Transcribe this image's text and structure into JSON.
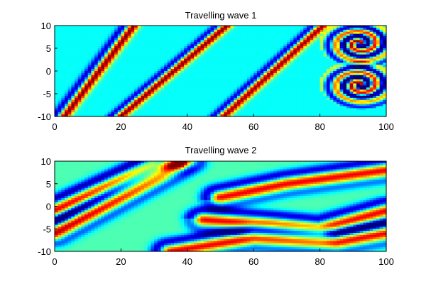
{
  "chart_data": [
    {
      "type": "heatmap",
      "title": "Travelling wave 1",
      "xlabel": "",
      "ylabel": "",
      "xlim": [
        0,
        100
      ],
      "ylim": [
        -10,
        10
      ],
      "x_ticks": [
        0,
        20,
        40,
        60,
        80,
        100
      ],
      "x_tick_labels": [
        "0",
        "20",
        "40",
        "60",
        "80",
        "100"
      ],
      "y_ticks": [
        10,
        5,
        0,
        -5,
        -10
      ],
      "y_tick_labels": [
        "10",
        "5",
        "0",
        "-5",
        "-10"
      ],
      "colormap": "jet",
      "background_value": 0.38,
      "diagonal_bands": [
        {
          "x_at_bottom": 3,
          "x_at_top": 24,
          "width": 1.2,
          "amplitude": 0.62
        },
        {
          "x_at_bottom": 20,
          "x_at_top": 52,
          "width": 1.3,
          "amplitude": 0.62
        },
        {
          "x_at_bottom": 51,
          "x_at_top": 81,
          "width": 1.3,
          "amplitude": 0.6
        }
      ],
      "spirals": [
        {
          "cx": 92,
          "cy": 6,
          "radius": 4,
          "amplitude": 0.6
        },
        {
          "cx": 92,
          "cy": -3,
          "radius": 4,
          "amplitude": 0.6
        }
      ]
    },
    {
      "type": "heatmap",
      "title": "Travelling wave 2",
      "xlabel": "",
      "ylabel": "",
      "xlim": [
        0,
        100
      ],
      "ylim": [
        -10,
        10
      ],
      "x_ticks": [
        0,
        20,
        40,
        60,
        80,
        100
      ],
      "x_tick_labels": [
        "0",
        "20",
        "40",
        "60",
        "80",
        "100"
      ],
      "y_ticks": [
        10,
        5,
        0,
        -5,
        -10
      ],
      "y_tick_labels": [
        "10",
        "5",
        "0",
        "-5",
        "-10"
      ],
      "colormap": "jet",
      "background_value": 0.45,
      "curves": [
        {
          "points": [
            [
              0,
              -1
            ],
            [
              30,
              9
            ],
            [
              37,
              10
            ]
          ],
          "amplitude": 0.5
        },
        {
          "points": [
            [
              0,
              -6
            ],
            [
              20,
              2
            ],
            [
              40,
              10
            ]
          ],
          "amplitude": 0.5
        },
        {
          "points": [
            [
              50,
              2
            ],
            [
              70,
              5
            ],
            [
              100,
              8
            ]
          ],
          "amplitude": 0.45
        },
        {
          "points": [
            [
              45,
              -3
            ],
            [
              65,
              -4
            ],
            [
              80,
              -5
            ],
            [
              100,
              -1
            ]
          ],
          "amplitude": 0.45
        },
        {
          "points": [
            [
              35,
              -10
            ],
            [
              60,
              -7
            ],
            [
              85,
              -8
            ],
            [
              100,
              -6
            ]
          ],
          "amplitude": 0.45
        }
      ]
    }
  ]
}
